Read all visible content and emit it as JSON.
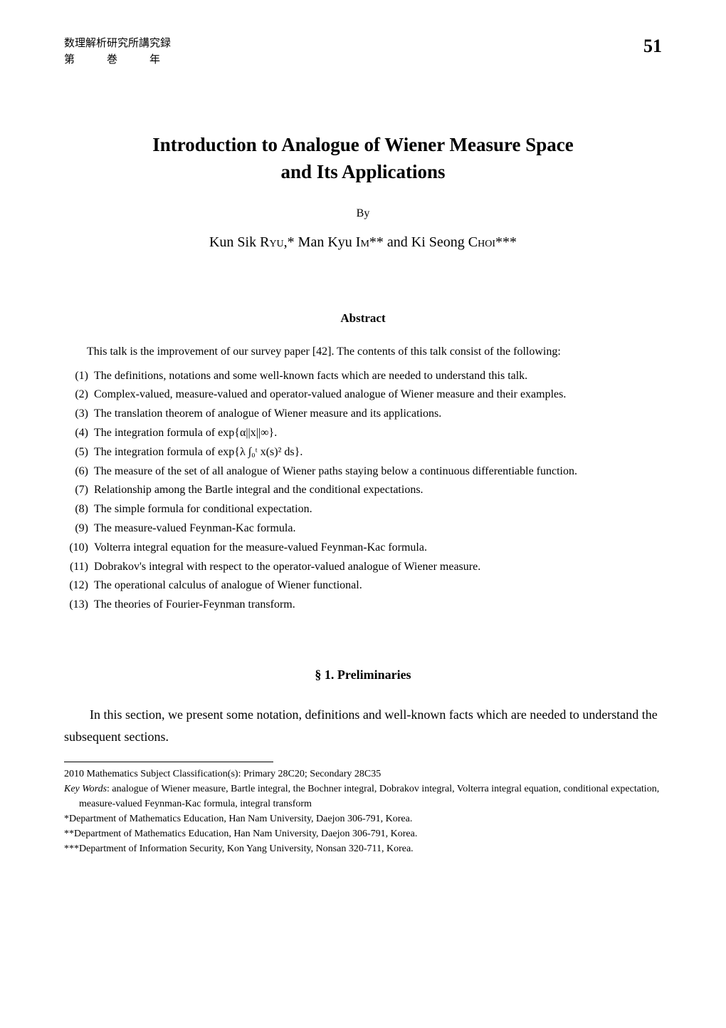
{
  "header": {
    "line1": "数理解析研究所講究録",
    "line2": "第　　　巻　　　年",
    "page_number": "51"
  },
  "title": {
    "line1": "Introduction to Analogue of Wiener Measure Space",
    "line2": "and Its Applications"
  },
  "by": "By",
  "authors": {
    "a1_first": "Kun Sik ",
    "a1_last": "Ryu",
    "a1_mark": ",*",
    "sep1": "  ",
    "a2_first": "Man Kyu ",
    "a2_last": "Im",
    "a2_mark": "**",
    "sep2": " and ",
    "a3_first": "Ki Seong ",
    "a3_last": "Choi",
    "a3_mark": "***"
  },
  "abstract": {
    "heading": "Abstract",
    "intro": "This talk is the improvement of our survey paper [42]. The contents of this talk consist of the following:",
    "items": [
      {
        "n": "(1)",
        "t": "The definitions, notations and some well-known facts which are needed to understand this talk."
      },
      {
        "n": "(2)",
        "t": "Complex-valued, measure-valued and operator-valued analogue of Wiener measure and their examples."
      },
      {
        "n": "(3)",
        "t": "The translation theorem of analogue of Wiener measure and its applications."
      },
      {
        "n": "(4)",
        "t": "The integration formula of exp{α||x||∞}."
      },
      {
        "n": "(5)",
        "t": "The integration formula of exp{λ ∫₀ᵗ x(s)² ds}."
      },
      {
        "n": "(6)",
        "t": "The measure of the set of all analogue of Wiener paths staying below a continuous differentiable function."
      },
      {
        "n": "(7)",
        "t": "Relationship among the Bartle integral and the conditional expectations."
      },
      {
        "n": "(8)",
        "t": "The simple formula for conditional expectation."
      },
      {
        "n": "(9)",
        "t": "The measure-valued Feynman-Kac formula."
      },
      {
        "n": "(10)",
        "t": "Volterra integral equation for the measure-valued Feynman-Kac formula."
      },
      {
        "n": "(11)",
        "t": "Dobrakov's integral with respect to the operator-valued analogue of Wiener measure."
      },
      {
        "n": "(12)",
        "t": "The operational calculus of analogue of Wiener functional."
      },
      {
        "n": "(13)",
        "t": "The theories of Fourier-Feynman transform."
      }
    ]
  },
  "section1": {
    "heading": "§ 1.   Preliminaries",
    "body": "In this section, we present some notation, definitions and well-known facts which are needed to understand the subsequent sections."
  },
  "footnotes": {
    "msc": "2010 Mathematics Subject Classification(s): Primary 28C20; Secondary 28C35",
    "keywords_label": "Key Words",
    "keywords": ": analogue of Wiener measure, Bartle integral, the Bochner integral, Dobrakov integral, Volterra integral equation, conditional expectation, measure-valued Feynman-Kac formula, integral transform",
    "aff1": "*Department of Mathematics Education, Han Nam University, Daejon 306-791, Korea.",
    "aff2": "**Department of Mathematics Education, Han Nam University, Daejon 306-791, Korea.",
    "aff3": "***Department of Information Security, Kon Yang University, Nonsan 320-711, Korea."
  }
}
